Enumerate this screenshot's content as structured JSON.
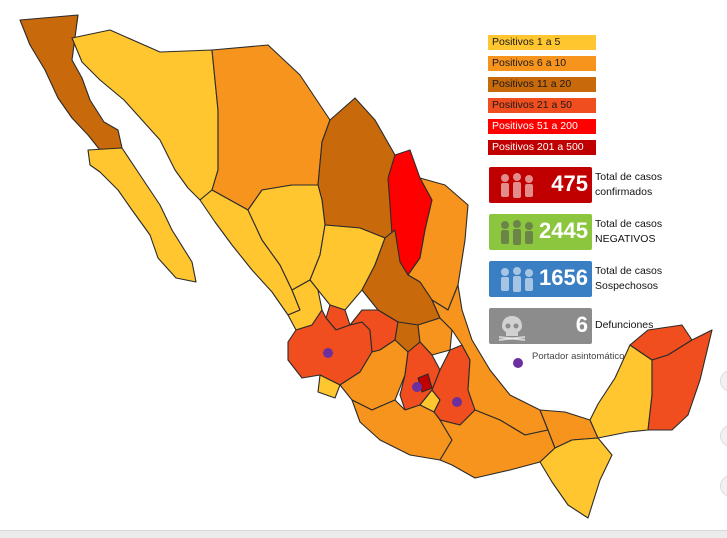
{
  "legend": [
    {
      "label": "Positivos 1 a 5",
      "color": "#FFC630",
      "text_color": "#1a1a1a"
    },
    {
      "label": "Positivos 6 a 10",
      "color": "#F7941D",
      "text_color": "#1a1a1a"
    },
    {
      "label": "Positivos 11 a 20",
      "color": "#C8690C",
      "text_color": "#1a1a1a"
    },
    {
      "label": "Positivos 21 a 50",
      "color": "#F04E1E",
      "text_color": "#1a1a1a"
    },
    {
      "label": "Positivos 51 a 200",
      "color": "#FF0000",
      "text_color": "#ffffff"
    },
    {
      "label": "Positivos 201 a 500",
      "color": "#C00000",
      "text_color": "#ffffff"
    }
  ],
  "stats": [
    {
      "value": "475",
      "label_line1": "Total de casos",
      "label_line2": "confirmados",
      "color": "#C00000",
      "icon": "people-icon"
    },
    {
      "value": "2445",
      "label_line1": "Total de casos",
      "label_line2": "NEGATIVOS",
      "color": "#8CC63F",
      "icon": "people-icon"
    },
    {
      "value": "1656",
      "label_line1": "Total de casos",
      "label_line2": "Sospechosos",
      "color": "#3A7FC4",
      "icon": "people-icon"
    },
    {
      "value": "6",
      "label_line1": "Defunciones",
      "label_line2": "",
      "color": "#8C8C8C",
      "icon": "skull-icon"
    }
  ],
  "asymptomatic_label": "Portador asintomático",
  "asymptomatic_color": "#6B2FA0"
}
